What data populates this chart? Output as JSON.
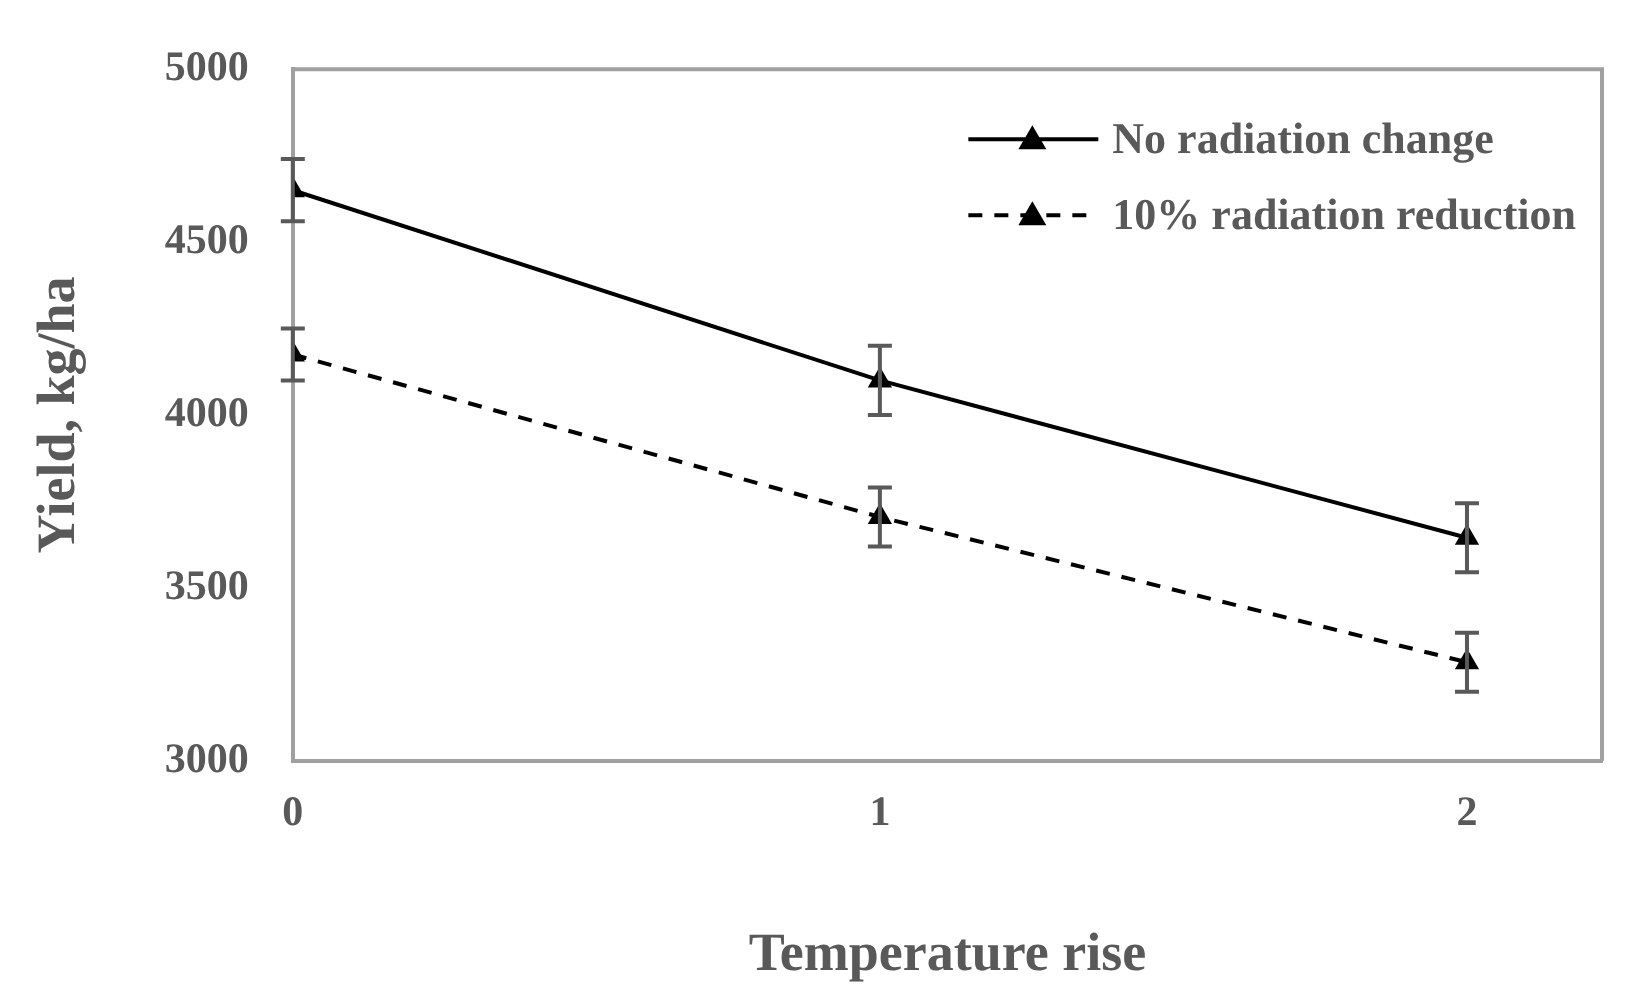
{
  "chart_data": {
    "type": "line",
    "xlabel": "Temperature rise",
    "ylabel": "Yield, kg/ha",
    "x": [
      0,
      1,
      2
    ],
    "xlim": [
      0,
      2.23
    ],
    "xticks": [
      0,
      1,
      2
    ],
    "ylim": [
      3000,
      5000
    ],
    "yticks": [
      3000,
      3500,
      4000,
      4500,
      5000
    ],
    "grid": false,
    "legend": "top right",
    "marker": "triangle",
    "series": [
      {
        "name": "No radiation change",
        "color": "#000000",
        "line_style": "solid",
        "values": [
          4650,
          4100,
          3645
        ],
        "errors": [
          90,
          100,
          100
        ]
      },
      {
        "name": "10% radiation reduction",
        "color": "#000000",
        "line_style": "dashed",
        "values": [
          4175,
          3705,
          3285
        ],
        "errors": [
          75,
          85,
          85
        ]
      }
    ]
  }
}
